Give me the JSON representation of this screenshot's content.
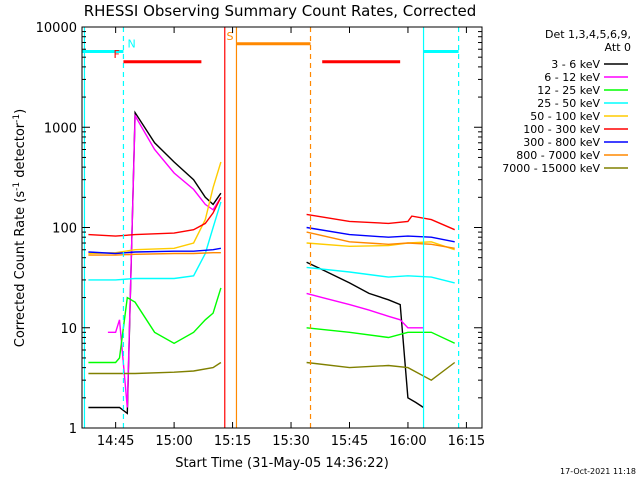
{
  "chart_data": {
    "type": "line",
    "title": "RHESSI Observing Summary Count Rates, Corrected",
    "xlabel": "Start Time (31-May-05 14:36:22)",
    "ylabel": "Corrected Count Rate (s",
    "ylabel_sup1": "-1",
    "ylabel_mid": " detector",
    "ylabel_sup2": "-1",
    "ylabel_end": ")",
    "y_scale": "log",
    "ylim": [
      1,
      10000
    ],
    "xlim": [
      "14:36:22",
      "16:19:00"
    ],
    "x_ticks": [
      "14:45",
      "15:00",
      "15:15",
      "15:30",
      "15:45",
      "16:00",
      "16:15"
    ],
    "y_ticks": [
      "1",
      "10",
      "100",
      "1000",
      "10000"
    ],
    "legend_header": [
      "Det 1,3,4,5,6,9,",
      "Att 0"
    ],
    "legend_placement": "right",
    "timestamp": "17-Oct-2021 11:18",
    "series": [
      {
        "name": "3 - 6 keV",
        "color": "#000000",
        "x": [
          "14:38",
          "14:45",
          "14:46",
          "14:48",
          "14:50",
          "14:55",
          "15:00",
          "15:05",
          "15:08",
          "15:10",
          "15:12",
          "15:34",
          "15:38",
          "15:45",
          "15:50",
          "15:55",
          "15:58",
          "16:00",
          "16:02",
          "16:04"
        ],
        "y": [
          1.6,
          1.6,
          1.6,
          1.4,
          1400,
          700,
          450,
          300,
          200,
          170,
          220,
          45,
          38,
          28,
          22,
          19,
          17,
          2,
          1.8,
          1.6
        ]
      },
      {
        "name": "6 - 12 keV",
        "color": "#ff00ff",
        "x": [
          "14:43",
          "14:45",
          "14:46",
          "14:48",
          "14:50",
          "14:55",
          "15:00",
          "15:05",
          "15:08",
          "15:10",
          "15:12",
          "15:34",
          "15:38",
          "15:45",
          "15:50",
          "15:55",
          "15:58",
          "16:00",
          "16:02",
          "16:04"
        ],
        "y": [
          9,
          9,
          12,
          1.6,
          1300,
          600,
          350,
          240,
          170,
          150,
          200,
          22,
          20,
          17,
          15,
          13,
          12,
          10,
          10,
          10
        ]
      },
      {
        "name": "12 - 25 keV",
        "color": "#00ff00",
        "x": [
          "14:38",
          "14:45",
          "14:46",
          "14:48",
          "14:50",
          "14:55",
          "15:00",
          "15:05",
          "15:08",
          "15:10",
          "15:12",
          "15:34",
          "15:45",
          "15:55",
          "16:00",
          "16:06",
          "16:12"
        ],
        "y": [
          4.5,
          4.5,
          5,
          20,
          18,
          9,
          7,
          9,
          12,
          14,
          25,
          10,
          9,
          8,
          9,
          9,
          7
        ]
      },
      {
        "name": "25 - 50 keV",
        "color": "#00ffff",
        "x": [
          "14:38",
          "14:45",
          "14:50",
          "15:00",
          "15:05",
          "15:08",
          "15:10",
          "15:12",
          "15:34",
          "15:45",
          "15:55",
          "16:00",
          "16:06",
          "16:12"
        ],
        "y": [
          30,
          30,
          31,
          31,
          33,
          55,
          100,
          180,
          40,
          36,
          32,
          33,
          32,
          28
        ]
      },
      {
        "name": "50 - 100 keV",
        "color": "#ffcc00",
        "x": [
          "14:38",
          "14:45",
          "14:50",
          "15:00",
          "15:05",
          "15:08",
          "15:10",
          "15:12",
          "15:34",
          "15:45",
          "15:55",
          "16:00",
          "16:06",
          "16:12"
        ],
        "y": [
          55,
          56,
          60,
          62,
          70,
          120,
          250,
          450,
          70,
          65,
          66,
          70,
          72,
          60
        ]
      },
      {
        "name": "100 - 300 keV",
        "color": "#ff0000",
        "x": [
          "14:38",
          "14:45",
          "14:50",
          "15:00",
          "15:05",
          "15:08",
          "15:10",
          "15:12",
          "15:34",
          "15:45",
          "15:55",
          "16:00",
          "16:01",
          "16:06",
          "16:12"
        ],
        "y": [
          85,
          82,
          85,
          88,
          95,
          110,
          140,
          200,
          135,
          115,
          110,
          115,
          130,
          120,
          95
        ]
      },
      {
        "name": "300 - 800 keV",
        "color": "#0000ff",
        "x": [
          "14:38",
          "14:45",
          "14:50",
          "15:00",
          "15:05",
          "15:10",
          "15:12",
          "15:34",
          "15:45",
          "15:55",
          "16:00",
          "16:06",
          "16:12"
        ],
        "y": [
          57,
          55,
          57,
          58,
          58,
          60,
          62,
          100,
          85,
          80,
          82,
          80,
          72
        ]
      },
      {
        "name": "800 - 7000 keV",
        "color": "#ff8800",
        "x": [
          "14:38",
          "14:45",
          "14:50",
          "15:00",
          "15:05",
          "15:10",
          "15:12",
          "15:34",
          "15:45",
          "15:55",
          "16:00",
          "16:06",
          "16:12"
        ],
        "y": [
          53,
          53,
          54,
          55,
          55,
          56,
          56,
          90,
          72,
          68,
          70,
          68,
          62
        ]
      },
      {
        "name": "7000 - 15000 keV",
        "color": "#808000",
        "x": [
          "14:38",
          "14:45",
          "14:50",
          "15:00",
          "15:05",
          "15:10",
          "15:12",
          "15:34",
          "15:45",
          "15:55",
          "16:00",
          "16:06",
          "16:12"
        ],
        "y": [
          3.5,
          3.5,
          3.5,
          3.6,
          3.7,
          4.0,
          4.5,
          4.5,
          4.0,
          4.2,
          4.0,
          3.0,
          4.5
        ]
      }
    ],
    "state_bars": [
      {
        "label": "N",
        "color": "#00ffff",
        "start": "14:36:22",
        "end": "14:47:00",
        "level": 5700
      },
      {
        "label": "",
        "color": "#00ffff",
        "start": "16:04:00",
        "end": "16:13:00",
        "level": 5700
      },
      {
        "label": "F",
        "color": "#ff0000",
        "start": "14:47:00",
        "end": "15:07:00",
        "level": 4500
      },
      {
        "label": "",
        "color": "#ff0000",
        "start": "15:38:00",
        "end": "15:58:00",
        "level": 4500
      },
      {
        "label": "S",
        "color": "#ff8800",
        "start": "15:16:00",
        "end": "15:35:00",
        "level": 6800
      }
    ],
    "vlines": [
      {
        "time": "14:37:00",
        "color": "#00ffff",
        "style": "solid"
      },
      {
        "time": "14:47:00",
        "color": "#00ffff",
        "style": "dashed"
      },
      {
        "time": "15:13:00",
        "color": "#ff0000",
        "style": "solid"
      },
      {
        "time": "15:16:00",
        "color": "#ff8800",
        "style": "solid"
      },
      {
        "time": "15:35:00",
        "color": "#ff8800",
        "style": "dashed"
      },
      {
        "time": "16:04:00",
        "color": "#00ffff",
        "style": "solid"
      },
      {
        "time": "16:13:00",
        "color": "#00ffff",
        "style": "dashed"
      }
    ]
  }
}
